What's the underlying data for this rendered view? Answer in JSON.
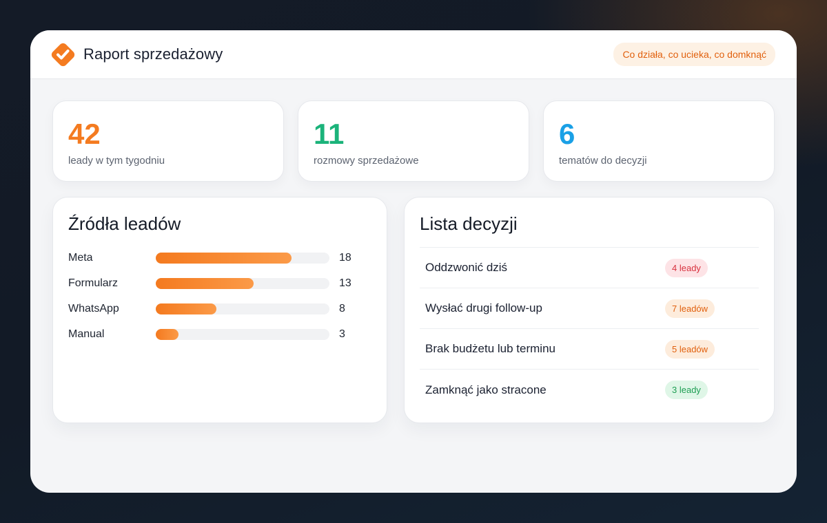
{
  "header": {
    "title": "Raport sprzedażowy",
    "tagline": "Co działa, co ucieka, co domknąć",
    "logo_icon": "check-diamond-icon",
    "accent": "#f47b20"
  },
  "stats": [
    {
      "value": "42",
      "label": "leady w tym tygodniu",
      "color": "#f47b20"
    },
    {
      "value": "11",
      "label": "rozmowy sprzedażowe",
      "color": "#1bb37a"
    },
    {
      "value": "6",
      "label": "tematów do decyzji",
      "color": "#1aa0e6"
    }
  ],
  "sources": {
    "title": "Źródła leadów",
    "max": 23,
    "items": [
      {
        "label": "Meta",
        "value": 18
      },
      {
        "label": "Formularz",
        "value": 13
      },
      {
        "label": "WhatsApp",
        "value": 8
      },
      {
        "label": "Manual",
        "value": 3
      }
    ]
  },
  "decisions": {
    "title": "Lista decyzji",
    "items": [
      {
        "label": "Oddzwonić dziś",
        "badge": "4 leady",
        "bg": "#fde3e6",
        "fg": "#d8323f"
      },
      {
        "label": "Wysłać drugi follow-up",
        "badge": "7 leadów",
        "bg": "#fdecdc",
        "fg": "#e1600d"
      },
      {
        "label": "Brak budżetu lub terminu",
        "badge": "5 leadów",
        "bg": "#fdecdc",
        "fg": "#e1600d"
      },
      {
        "label": "Zamknąć jako stracone",
        "badge": "3 leady",
        "bg": "#dff6e7",
        "fg": "#1e9e53"
      }
    ]
  }
}
